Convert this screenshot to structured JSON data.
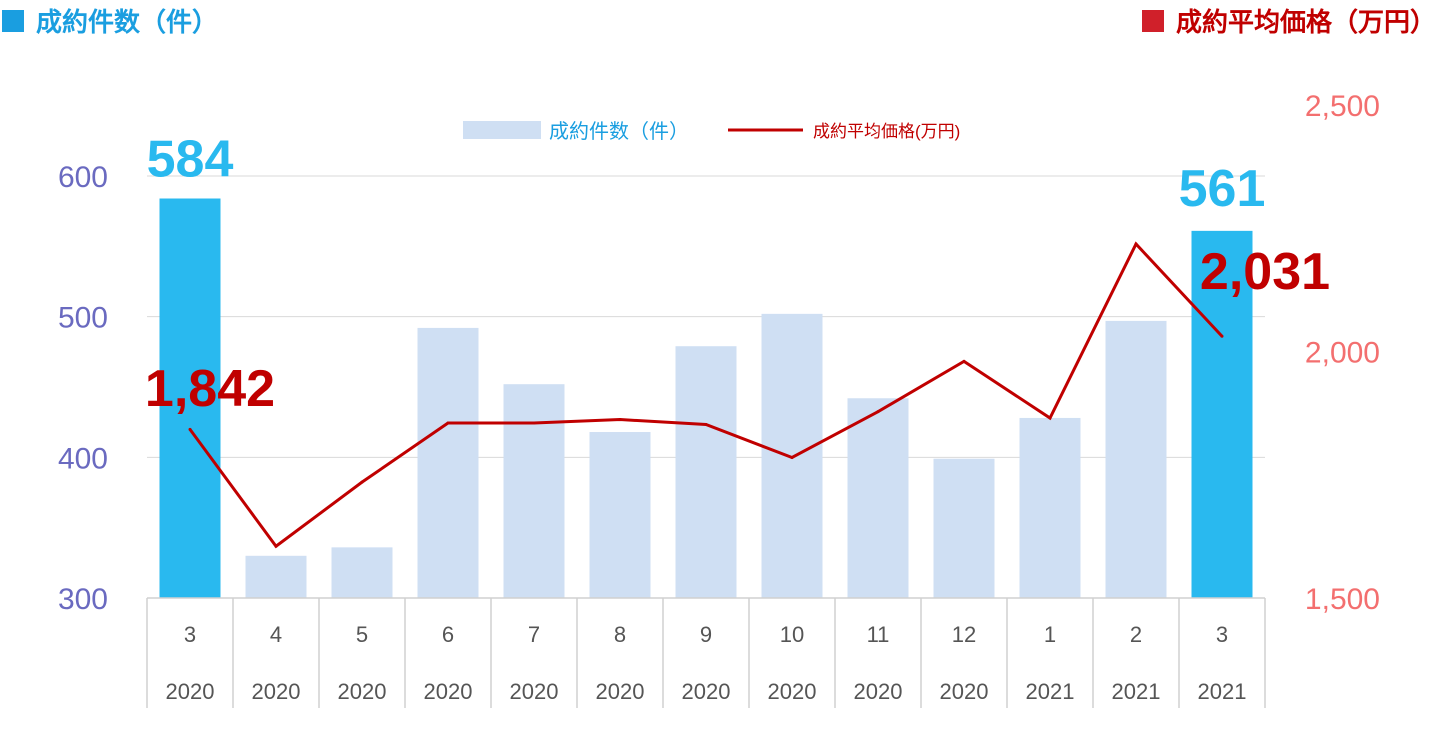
{
  "header": {
    "left_title": "成約件数（件）",
    "right_title": "成約平均価格（万円）",
    "left_color": "#1a9ee0",
    "right_color": "#d0202a"
  },
  "chart_data": {
    "type": "bar",
    "categories": [
      "3",
      "4",
      "5",
      "6",
      "7",
      "8",
      "9",
      "10",
      "11",
      "12",
      "1",
      "2",
      "3"
    ],
    "years": [
      "2020",
      "2020",
      "2020",
      "2020",
      "2020",
      "2020",
      "2020",
      "2020",
      "2020",
      "2020",
      "2021",
      "2021",
      "2021"
    ],
    "series": [
      {
        "name": "成約件数（件）",
        "type": "bar",
        "axis": "left",
        "values": [
          584,
          330,
          336,
          492,
          452,
          418,
          479,
          502,
          442,
          399,
          428,
          497,
          561
        ],
        "highlight": [
          0,
          12
        ],
        "color": "#cfdff3",
        "highlight_color": "#29b9ef"
      },
      {
        "name": "成約平均価格(万円)",
        "type": "line",
        "axis": "right",
        "values": [
          1842,
          1605,
          1735,
          1855,
          1855,
          1862,
          1852,
          1785,
          1878,
          1980,
          1865,
          2218,
          2031
        ],
        "color": "#c00000"
      }
    ],
    "left_axis": {
      "ylim": [
        300,
        600
      ],
      "ticks": [
        "300",
        "400",
        "500",
        "600"
      ],
      "color": "#6a6ac0"
    },
    "right_axis": {
      "ylim": [
        1500,
        2500
      ],
      "ticks": [
        "1,500",
        "2,000",
        "2,500"
      ],
      "color": "#f36f6f"
    },
    "annotations": [
      {
        "text": "584",
        "series": 0,
        "index": 0,
        "color": "#29b9ef"
      },
      {
        "text": "561",
        "series": 0,
        "index": 12,
        "color": "#29b9ef"
      },
      {
        "text": "1,842",
        "series": 1,
        "index": 0,
        "color": "#c00000"
      },
      {
        "text": "2,031",
        "series": 1,
        "index": 12,
        "color": "#c00000"
      }
    ],
    "legend": {
      "position": "top-center"
    },
    "grid": true
  }
}
